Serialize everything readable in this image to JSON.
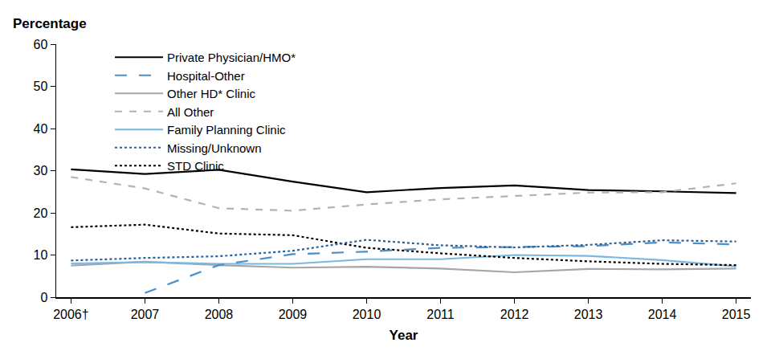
{
  "chart_data": {
    "type": "line",
    "x_label": "Year",
    "y_label": "Percentage",
    "categories": [
      "2006†",
      "2007",
      "2008",
      "2009",
      "2010",
      "2011",
      "2012",
      "2013",
      "2014",
      "2015"
    ],
    "ylim": [
      0,
      60
    ],
    "yticks": [
      0,
      10,
      20,
      30,
      40,
      50,
      60
    ],
    "grid": false,
    "legend": "top",
    "series": [
      {
        "name": "Private Physician/HMO*",
        "color": "#000000",
        "line_style": "solid",
        "values": [
          30.3,
          29.2,
          30.2,
          27.4,
          24.9,
          25.9,
          26.5,
          25.4,
          25.1,
          24.7
        ]
      },
      {
        "name": "Other HD* Clinic",
        "color": "#a6a6a6",
        "line_style": "solid",
        "values": [
          7.5,
          8.4,
          7.6,
          7.0,
          7.2,
          6.8,
          5.9,
          6.7,
          6.6,
          6.8
        ]
      },
      {
        "name": "Family Planning Clinic",
        "color": "#7ab8e0",
        "line_style": "solid",
        "values": [
          8.0,
          8.3,
          7.9,
          7.9,
          9.0,
          9.0,
          10.0,
          9.8,
          8.8,
          7.3
        ]
      },
      {
        "name": "STD Clinic",
        "color": "#000000",
        "line_style": "dot",
        "values": [
          16.6,
          17.2,
          15.1,
          14.7,
          11.7,
          10.4,
          9.3,
          8.5,
          7.9,
          7.6
        ]
      },
      {
        "name": "Hospital-Other",
        "color": "#4a8fc8",
        "line_style": "longdash",
        "values": [
          null,
          1.0,
          7.6,
          10.2,
          10.8,
          11.7,
          11.9,
          12.1,
          13.0,
          12.5
        ]
      },
      {
        "name": "All Other",
        "color": "#b3b3b3",
        "line_style": "dash",
        "values": [
          28.5,
          25.8,
          21.1,
          20.5,
          22.0,
          23.2,
          24.0,
          24.8,
          24.9,
          27.0
        ]
      },
      {
        "name": "Missing/Unknown",
        "color": "#2a6099",
        "line_style": "dot",
        "values": [
          8.7,
          9.3,
          9.7,
          11.0,
          13.6,
          12.3,
          11.8,
          12.4,
          13.5,
          13.2
        ]
      }
    ]
  }
}
